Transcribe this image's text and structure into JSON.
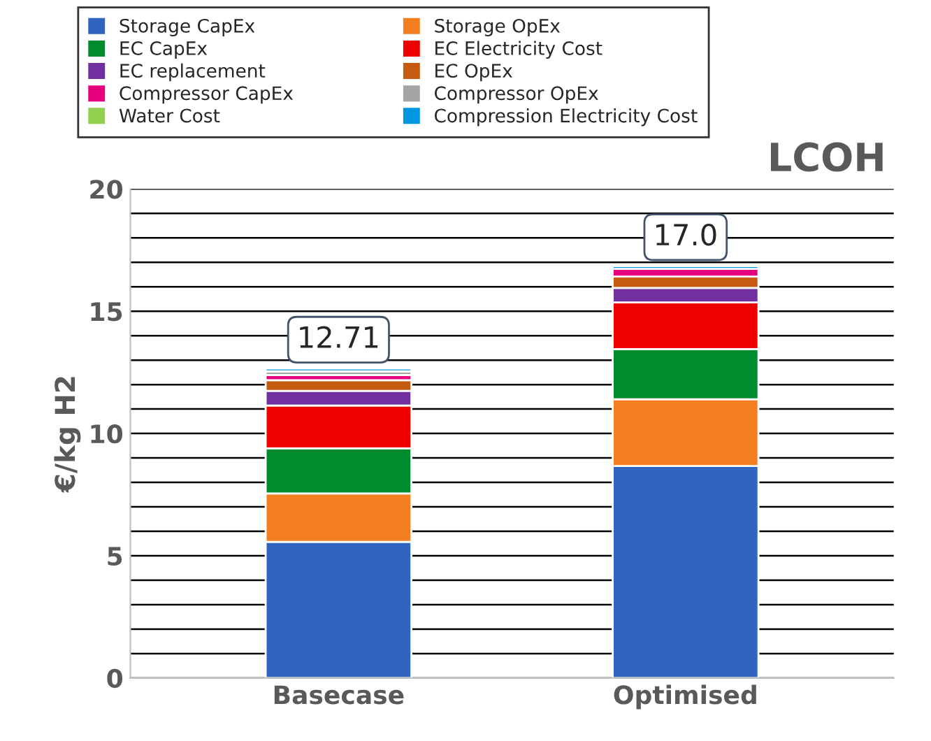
{
  "chart_data": {
    "type": "bar",
    "stacked": true,
    "title": "LCOH",
    "ylabel": "€/kg H2",
    "categories": [
      "Basecase",
      "Optimised"
    ],
    "series": [
      {
        "name": "Storage CapEx",
        "color": "#2f65c1",
        "values": [
          5.57,
          8.67
        ]
      },
      {
        "name": "Storage OpEx",
        "color": "#f47f20",
        "values": [
          1.98,
          2.73
        ]
      },
      {
        "name": "EC CapEx",
        "color": "#008c2e",
        "values": [
          1.84,
          2.05
        ]
      },
      {
        "name": "EC Electricity Cost",
        "color": "#ee0000",
        "values": [
          1.75,
          1.91
        ]
      },
      {
        "name": "EC replacement",
        "color": "#7030a0",
        "values": [
          0.6,
          0.59
        ]
      },
      {
        "name": "EC OpEx",
        "color": "#c55a11",
        "values": [
          0.44,
          0.47
        ]
      },
      {
        "name": "Compressor CapEx",
        "color": "#e6007e",
        "values": [
          0.21,
          0.31
        ]
      },
      {
        "name": "Compressor OpEx",
        "color": "#a5a5a5",
        "values": [
          0.15,
          null
        ]
      },
      {
        "name": "Water Cost",
        "color": "#92d050",
        "values": [
          null,
          null
        ]
      },
      {
        "name": "Compression Electricity Cost",
        "color": "#0096e0",
        "values": [
          0.12,
          0.12
        ]
      }
    ],
    "totals": [
      "12.71",
      "17.0"
    ],
    "ylim": [
      0,
      20
    ],
    "yticks": [
      0,
      {
        "value": 1,
        "label": null
      },
      {
        "value": 2,
        "label": null
      },
      {
        "value": 3,
        "label": null
      },
      {
        "value": 4,
        "label": null
      },
      5,
      {
        "value": 6,
        "label": null
      },
      {
        "value": 7,
        "label": null
      },
      {
        "value": 8,
        "label": null
      },
      {
        "value": 9,
        "label": null
      },
      10,
      {
        "value": 11,
        "label": null
      },
      {
        "value": 12,
        "label": null
      },
      {
        "value": 13,
        "label": null
      },
      {
        "value": 14,
        "label": null
      },
      15,
      {
        "value": 16,
        "label": null
      },
      {
        "value": 17,
        "label": null
      },
      {
        "value": 18,
        "label": null
      },
      {
        "value": 19,
        "label": null
      },
      20
    ],
    "grid": "y",
    "legend": "top"
  }
}
